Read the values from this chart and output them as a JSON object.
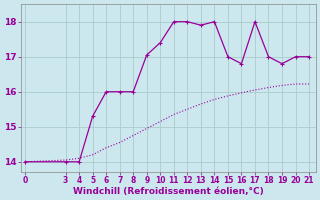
{
  "xlabel": "Windchill (Refroidissement éolien,°C)",
  "x_ticks": [
    0,
    3,
    4,
    5,
    6,
    7,
    8,
    9,
    10,
    11,
    12,
    13,
    14,
    15,
    16,
    17,
    18,
    19,
    20,
    21
  ],
  "curve1_x": [
    0,
    3,
    4,
    5,
    6,
    7,
    8,
    9,
    10,
    11,
    12,
    13,
    14,
    15,
    16,
    17,
    18,
    19,
    20,
    21
  ],
  "curve1_y": [
    14.0,
    14.0,
    14.0,
    15.3,
    16.0,
    16.0,
    16.0,
    17.05,
    17.4,
    18.0,
    18.0,
    17.9,
    18.0,
    17.0,
    16.8,
    18.0,
    17.0,
    16.8,
    17.0,
    17.0
  ],
  "curve2_x": [
    0,
    3,
    4,
    5,
    6,
    7,
    8,
    9,
    10,
    11,
    12,
    13,
    14,
    15,
    16,
    17,
    18,
    19,
    20,
    21
  ],
  "curve2_y": [
    14.0,
    14.05,
    14.1,
    14.2,
    14.4,
    14.55,
    14.75,
    14.95,
    15.15,
    15.35,
    15.5,
    15.65,
    15.78,
    15.88,
    15.97,
    16.05,
    16.12,
    16.18,
    16.22,
    16.22
  ],
  "line_color": "#990099",
  "bg_color": "#cce8ee",
  "grid_color": "#bbdde6",
  "ylim": [
    13.7,
    18.5
  ],
  "xlim": [
    -0.3,
    21.5
  ],
  "y_ticks": [
    14,
    15,
    16,
    17,
    18
  ]
}
